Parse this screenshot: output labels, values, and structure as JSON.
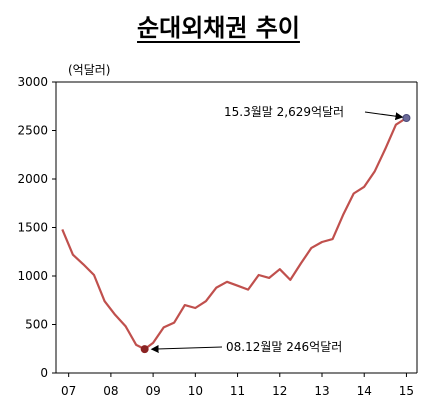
{
  "chart_data": {
    "type": "line",
    "title": "순대외채권 추이",
    "ylabel": "(억달러)",
    "xlabel": "",
    "ylim": [
      0,
      3000
    ],
    "yticks": [
      0,
      500,
      1000,
      1500,
      2000,
      2500,
      3000
    ],
    "xlim": [
      2006.7,
      2015.25
    ],
    "xtick_labels": [
      {
        "label": "07",
        "x": 2007.0
      },
      {
        "label": "08",
        "x": 2008.0
      },
      {
        "label": "09",
        "x": 2009.0
      },
      {
        "label": "10",
        "x": 2010.0
      },
      {
        "label": "11",
        "x": 2011.0
      },
      {
        "label": "12",
        "x": 2012.0
      },
      {
        "label": "13",
        "x": 2013.0
      },
      {
        "label": "14",
        "x": 2014.0
      },
      {
        "label": "15",
        "x": 2015.0
      }
    ],
    "grid": false,
    "line_color": "#c0504d",
    "marker_color": "#8b2323",
    "series": [
      {
        "name": "",
        "points": [
          {
            "x": 2006.85,
            "y": 1480
          },
          {
            "x": 2007.1,
            "y": 1220
          },
          {
            "x": 2007.35,
            "y": 1120
          },
          {
            "x": 2007.6,
            "y": 1010
          },
          {
            "x": 2007.85,
            "y": 740
          },
          {
            "x": 2008.1,
            "y": 600
          },
          {
            "x": 2008.35,
            "y": 480
          },
          {
            "x": 2008.6,
            "y": 290
          },
          {
            "x": 2008.8,
            "y": 246
          },
          {
            "x": 2009.0,
            "y": 310
          },
          {
            "x": 2009.25,
            "y": 470
          },
          {
            "x": 2009.5,
            "y": 520
          },
          {
            "x": 2009.75,
            "y": 700
          },
          {
            "x": 2010.0,
            "y": 670
          },
          {
            "x": 2010.25,
            "y": 740
          },
          {
            "x": 2010.5,
            "y": 880
          },
          {
            "x": 2010.75,
            "y": 940
          },
          {
            "x": 2011.0,
            "y": 900
          },
          {
            "x": 2011.25,
            "y": 860
          },
          {
            "x": 2011.5,
            "y": 1010
          },
          {
            "x": 2011.75,
            "y": 980
          },
          {
            "x": 2012.0,
            "y": 1070
          },
          {
            "x": 2012.25,
            "y": 960
          },
          {
            "x": 2012.5,
            "y": 1130
          },
          {
            "x": 2012.75,
            "y": 1290
          },
          {
            "x": 2013.0,
            "y": 1350
          },
          {
            "x": 2013.25,
            "y": 1380
          },
          {
            "x": 2013.5,
            "y": 1630
          },
          {
            "x": 2013.75,
            "y": 1850
          },
          {
            "x": 2014.0,
            "y": 1920
          },
          {
            "x": 2014.25,
            "y": 2080
          },
          {
            "x": 2014.5,
            "y": 2310
          },
          {
            "x": 2014.75,
            "y": 2560
          },
          {
            "x": 2015.0,
            "y": 2629
          }
        ]
      }
    ],
    "annotations": [
      {
        "text": "08.12월말  246억달러",
        "x": 2008.8,
        "y": 246
      },
      {
        "text": "15.3월말  2,629억달러",
        "x": 2015.0,
        "y": 2629
      }
    ]
  }
}
